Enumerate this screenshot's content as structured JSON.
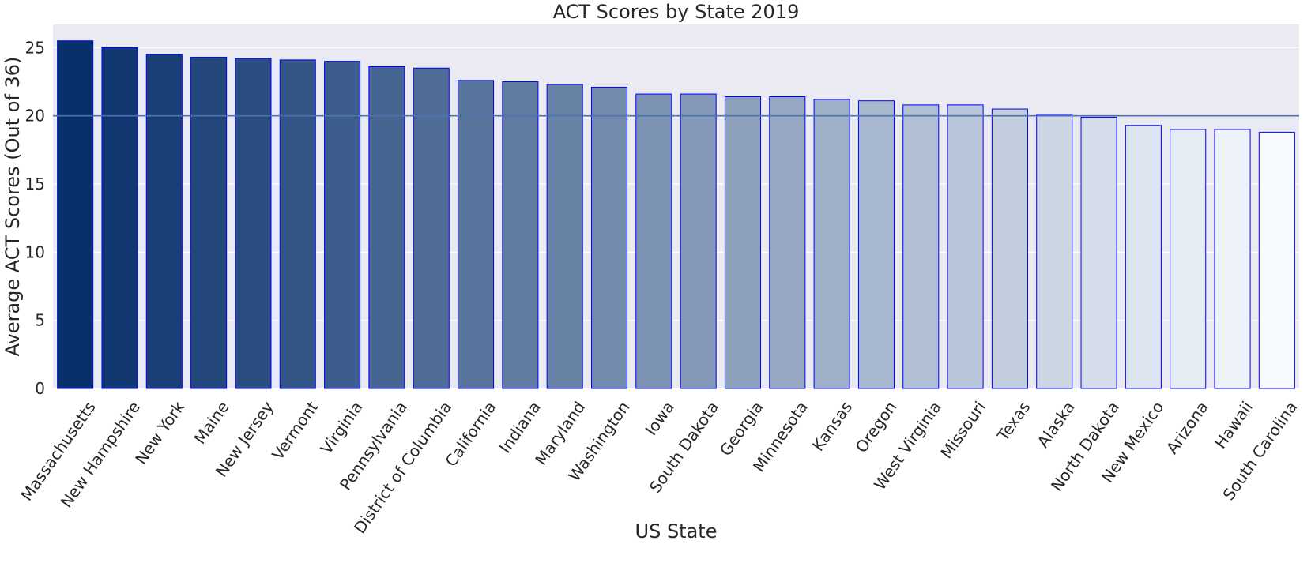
{
  "chart_data": {
    "type": "bar",
    "title": "ACT Scores by State 2019",
    "xlabel": "US State",
    "ylabel": "Average ACT Scores (Out of 36)",
    "ylim": [
      0,
      26.7
    ],
    "yticks": [
      0,
      5,
      10,
      15,
      20,
      25
    ],
    "grid": true,
    "reference_line": {
      "y": 20,
      "color": "#4c72b0"
    },
    "bar_edge_color": "#0000ff",
    "background_color": "#eaeaf2",
    "palette_start": "#08306b",
    "palette_end": "#f7fbff",
    "categories": [
      "Massachusetts",
      "New Hampshire",
      "New York",
      "Maine",
      "New Jersey",
      "Vermont",
      "Virginia",
      "Pennsylvania",
      "District of Columbia",
      "California",
      "Indiana",
      "Maryland",
      "Washington",
      "Iowa",
      "South Dakota",
      "Georgia",
      "Minnesota",
      "Kansas",
      "Oregon",
      "West Virginia",
      "Missouri",
      "Texas",
      "Alaska",
      "North Dakota",
      "New Mexico",
      "Arizona",
      "Hawaii",
      "South Carolina"
    ],
    "values": [
      25.5,
      25.0,
      24.5,
      24.3,
      24.2,
      24.1,
      24.0,
      23.6,
      23.5,
      22.6,
      22.5,
      22.3,
      22.1,
      21.6,
      21.6,
      21.4,
      21.4,
      21.2,
      21.1,
      20.8,
      20.8,
      20.5,
      20.1,
      19.9,
      19.3,
      19.0,
      19.0,
      18.8
    ]
  }
}
